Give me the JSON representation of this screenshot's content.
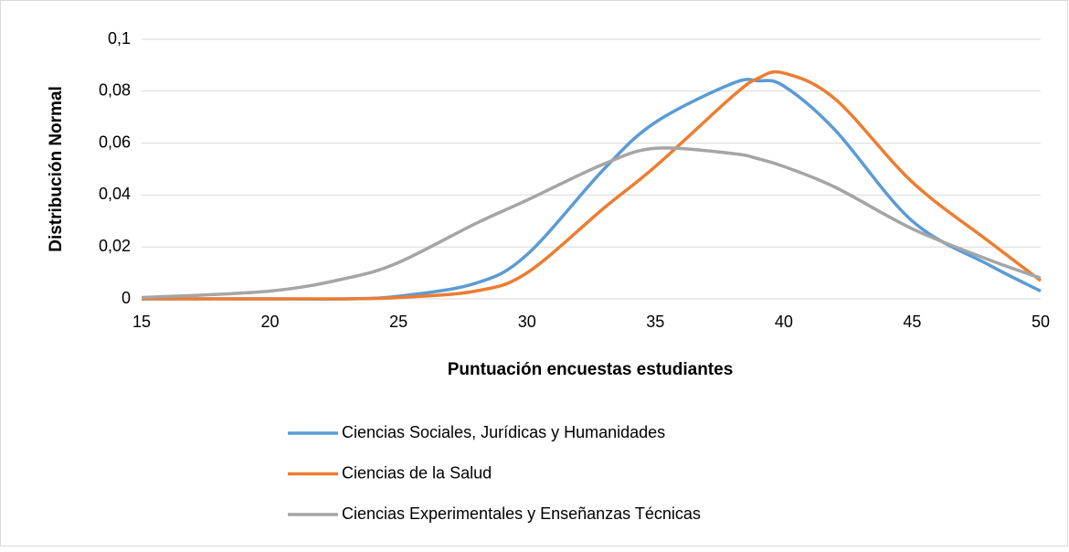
{
  "chart_data": {
    "type": "line",
    "x_label": "Puntuación encuestas estudiantes",
    "y_label": "Distribución Normal",
    "x": [
      15,
      20,
      23,
      25,
      28,
      30,
      33,
      35,
      38,
      39,
      40,
      42,
      45,
      48,
      50
    ],
    "series": [
      {
        "name": "Ciencias Sociales, Jurídicas y Humanidades",
        "color": "#5b9bd5",
        "values": [
          0,
          0,
          0,
          0.001,
          0.006,
          0.017,
          0.05,
          0.068,
          0.083,
          0.084,
          0.082,
          0.065,
          0.03,
          0.013,
          0.003
        ]
      },
      {
        "name": "Ciencias de la Salud",
        "color": "#ed7d31",
        "values": [
          0,
          0,
          0,
          0.0005,
          0.003,
          0.01,
          0.035,
          0.051,
          0.078,
          0.085,
          0.087,
          0.077,
          0.045,
          0.022,
          0.007
        ]
      },
      {
        "name": "Ciencias Experimentales y Enseñanzas Técnicas",
        "color": "#a5a5a5",
        "values": [
          0.0005,
          0.003,
          0.008,
          0.014,
          0.029,
          0.038,
          0.052,
          0.058,
          0.056,
          0.054,
          0.051,
          0.043,
          0.027,
          0.015,
          0.008
        ]
      }
    ],
    "xlim": [
      15,
      50
    ],
    "xticks": [
      15,
      20,
      25,
      30,
      35,
      40,
      45,
      50
    ],
    "ylim": [
      0,
      0.1
    ],
    "yticks": [
      0,
      {
        "value": 0.02,
        "label": "0,02"
      },
      {
        "value": 0.04,
        "label": "0,04"
      },
      {
        "value": 0.06,
        "label": "0,06"
      },
      {
        "value": 0.08,
        "label": "0,08"
      },
      {
        "value": 0.1,
        "label": "0,1"
      }
    ],
    "grid": true,
    "legend": "bottom"
  }
}
